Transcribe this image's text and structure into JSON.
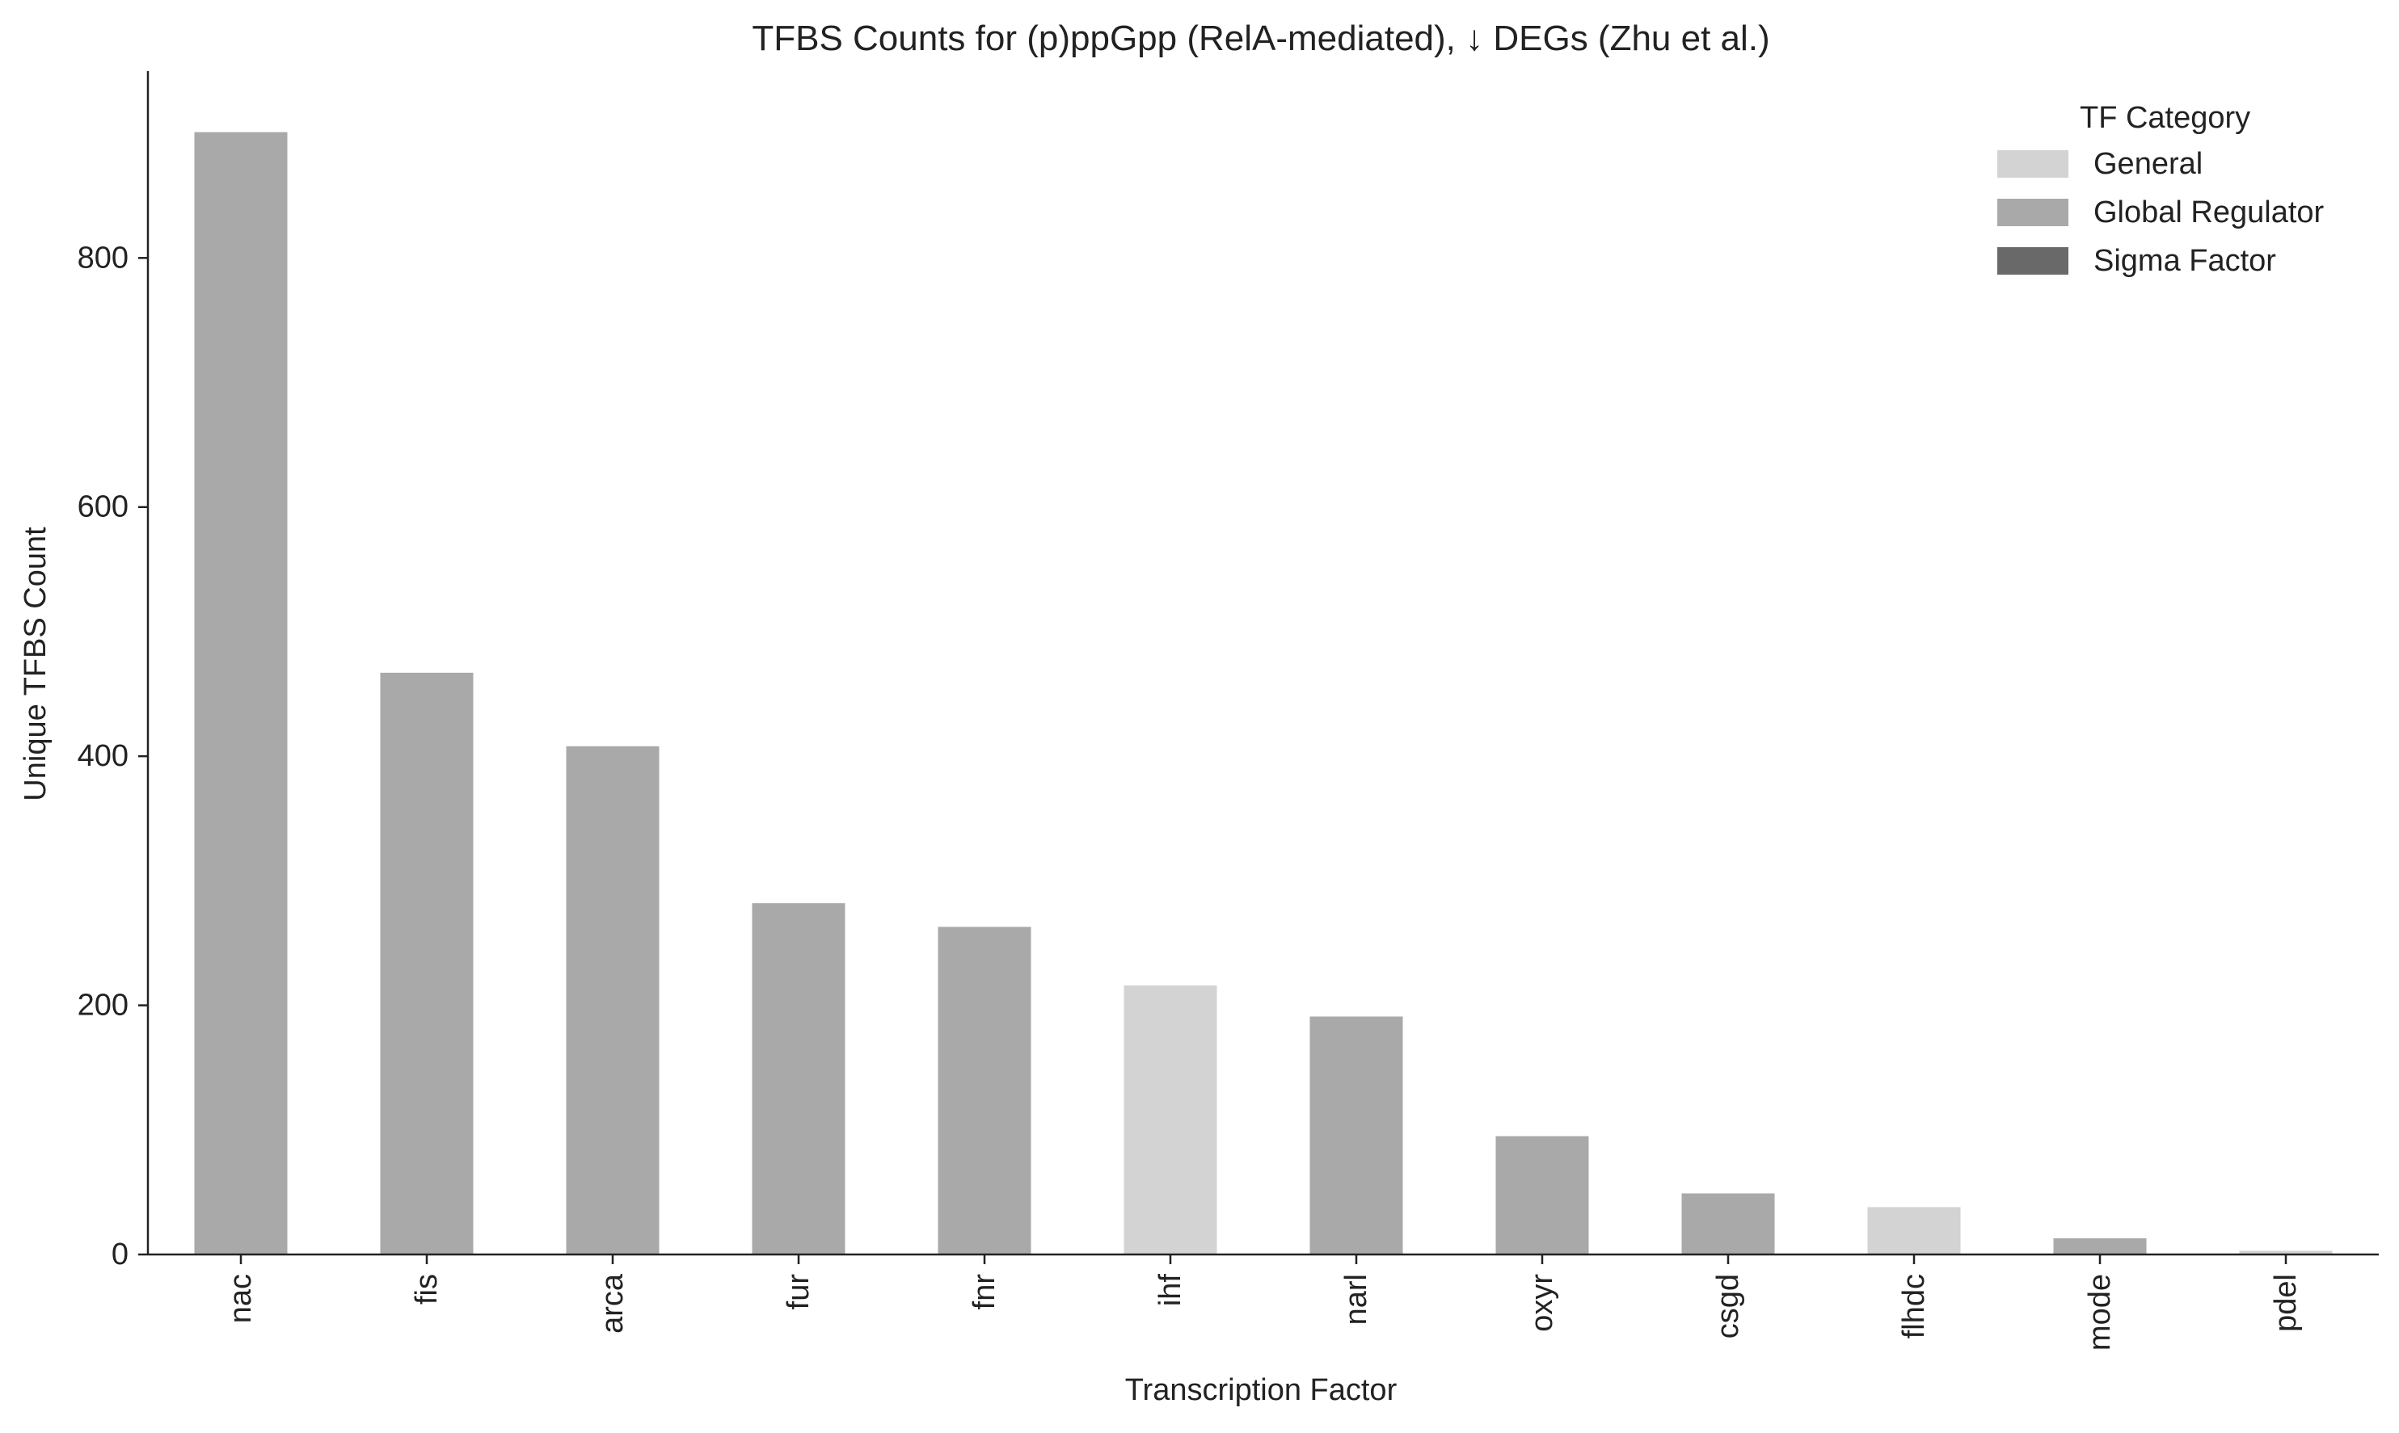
{
  "chart_data": {
    "type": "bar",
    "title": "TFBS Counts for (p)ppGpp (RelA-mediated), ↓ DEGs (Zhu et al.)",
    "xlabel": "Transcription Factor",
    "ylabel": "Unique TFBS Count",
    "ylim": [
      0,
      950
    ],
    "yticks": [
      0,
      200,
      400,
      600,
      800
    ],
    "grid": false,
    "legend_position": "top-right",
    "legend_title": "TF Category",
    "categories_legend": [
      {
        "name": "General",
        "color": "#d3d3d3"
      },
      {
        "name": "Global Regulator",
        "color": "#a9a9a9"
      },
      {
        "name": "Sigma Factor",
        "color": "#696969"
      }
    ],
    "categories": [
      "nac",
      "fis",
      "arca",
      "fur",
      "fnr",
      "ihf",
      "narl",
      "oxyr",
      "csgd",
      "flhdc",
      "mode",
      "pdel"
    ],
    "values": [
      901,
      467,
      408,
      282,
      263,
      216,
      191,
      95,
      49,
      38,
      13,
      3
    ],
    "bar_category": [
      "Global Regulator",
      "Global Regulator",
      "Global Regulator",
      "Global Regulator",
      "Global Regulator",
      "General",
      "Global Regulator",
      "Global Regulator",
      "Global Regulator",
      "General",
      "Global Regulator",
      "General"
    ]
  }
}
